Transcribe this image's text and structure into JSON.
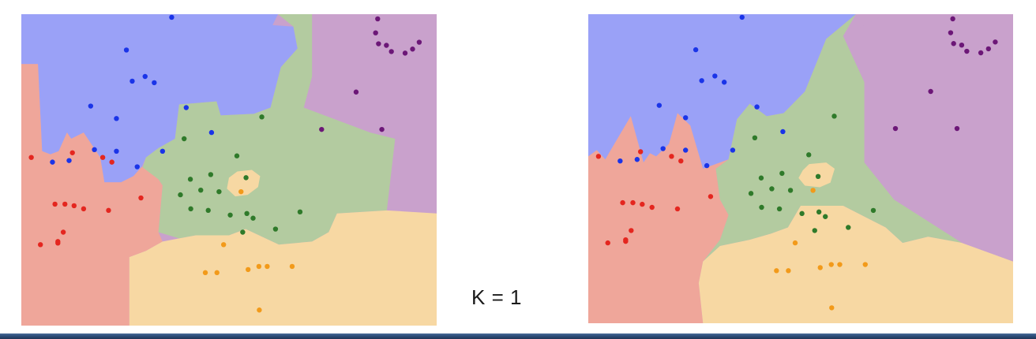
{
  "caption": "K = 1",
  "colors": {
    "blue": {
      "region": "#9aa1f7",
      "point": "#1a34e8"
    },
    "purple": {
      "region": "#c9a1cc",
      "point": "#6c1777"
    },
    "green": {
      "region": "#b3cba0",
      "point": "#2f7a2a"
    },
    "red": {
      "region": "#efa69a",
      "point": "#e4261f"
    },
    "orange": {
      "region": "#f7d8a3",
      "point": "#f29a1a"
    }
  },
  "points": {
    "blue": [
      [
        0.362,
        0.01
      ],
      [
        0.253,
        0.115
      ],
      [
        0.267,
        0.215
      ],
      [
        0.298,
        0.2
      ],
      [
        0.32,
        0.22
      ],
      [
        0.167,
        0.295
      ],
      [
        0.229,
        0.335
      ],
      [
        0.397,
        0.3
      ],
      [
        0.458,
        0.38
      ],
      [
        0.176,
        0.435
      ],
      [
        0.229,
        0.44
      ],
      [
        0.34,
        0.44
      ],
      [
        0.075,
        0.475
      ],
      [
        0.115,
        0.47
      ],
      [
        0.279,
        0.49
      ]
    ],
    "purple": [
      [
        0.858,
        0.015
      ],
      [
        0.853,
        0.06
      ],
      [
        0.86,
        0.095
      ],
      [
        0.879,
        0.1
      ],
      [
        0.891,
        0.12
      ],
      [
        0.924,
        0.125
      ],
      [
        0.942,
        0.112
      ],
      [
        0.958,
        0.09
      ],
      [
        0.806,
        0.25
      ],
      [
        0.723,
        0.37
      ],
      [
        0.868,
        0.37
      ]
    ],
    "green": [
      [
        0.579,
        0.33
      ],
      [
        0.392,
        0.4
      ],
      [
        0.519,
        0.455
      ],
      [
        0.456,
        0.515
      ],
      [
        0.541,
        0.525
      ],
      [
        0.407,
        0.53
      ],
      [
        0.383,
        0.58
      ],
      [
        0.432,
        0.565
      ],
      [
        0.476,
        0.57
      ],
      [
        0.408,
        0.625
      ],
      [
        0.45,
        0.63
      ],
      [
        0.503,
        0.645
      ],
      [
        0.543,
        0.64
      ],
      [
        0.671,
        0.635
      ],
      [
        0.558,
        0.655
      ],
      [
        0.612,
        0.69
      ],
      [
        0.533,
        0.7
      ]
    ],
    "red": [
      [
        0.024,
        0.46
      ],
      [
        0.123,
        0.445
      ],
      [
        0.196,
        0.46
      ],
      [
        0.218,
        0.475
      ],
      [
        0.288,
        0.59
      ],
      [
        0.081,
        0.61
      ],
      [
        0.105,
        0.61
      ],
      [
        0.127,
        0.615
      ],
      [
        0.15,
        0.625
      ],
      [
        0.21,
        0.63
      ],
      [
        0.101,
        0.7
      ],
      [
        0.088,
        0.73
      ],
      [
        0.046,
        0.74
      ],
      [
        0.088,
        0.735
      ]
    ],
    "orange": [
      [
        0.529,
        0.57
      ],
      [
        0.487,
        0.74
      ],
      [
        0.443,
        0.83
      ],
      [
        0.546,
        0.82
      ],
      [
        0.572,
        0.81
      ],
      [
        0.592,
        0.81
      ],
      [
        0.471,
        0.83
      ],
      [
        0.652,
        0.81
      ],
      [
        0.573,
        0.95
      ]
    ]
  }
}
